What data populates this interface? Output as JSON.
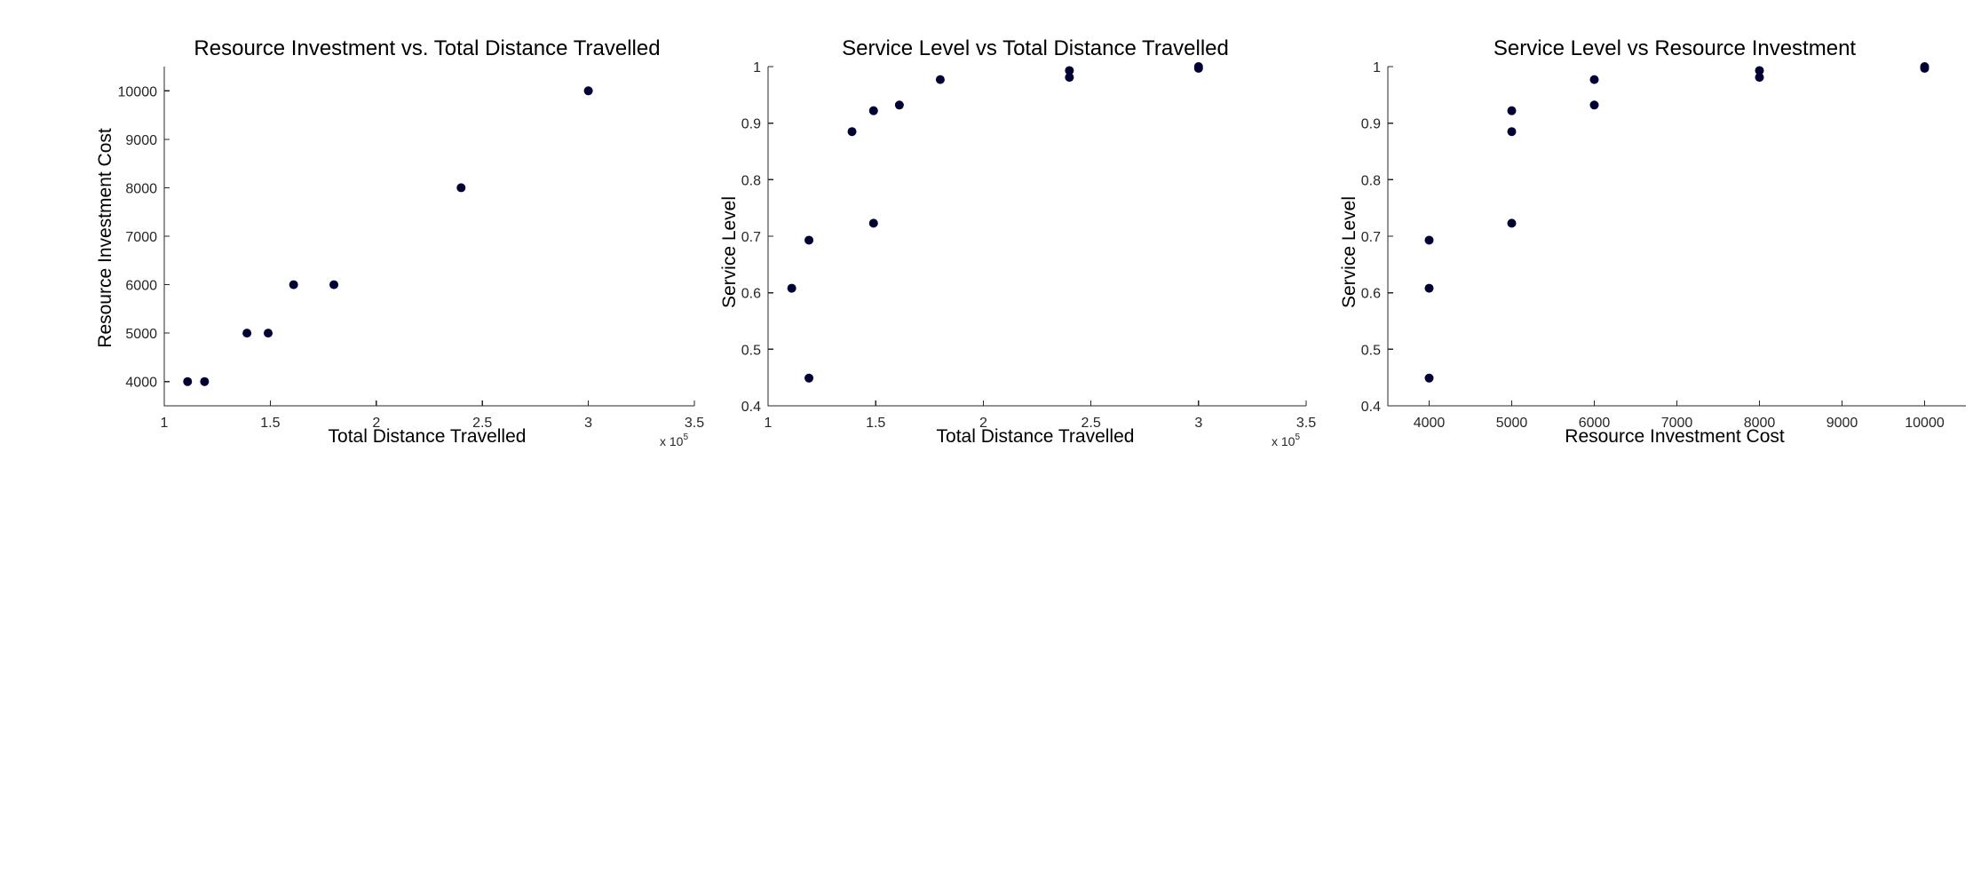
{
  "marker_color": "#000033",
  "chart_data": [
    {
      "type": "scatter",
      "title": "Resource Investment vs. Total Distance Travelled",
      "xlabel": "Total Distance Travelled",
      "ylabel": "Resource Investment Cost",
      "xlim": [
        1,
        3.5
      ],
      "ylim": [
        3500,
        10500
      ],
      "xticks": [
        "1",
        "1.5",
        "2",
        "2.5",
        "3",
        "3.5"
      ],
      "yticks": [
        "4000",
        "5000",
        "6000",
        "7000",
        "8000",
        "9000",
        "10000"
      ],
      "x_exponent": "x 10",
      "x_exponent_power": "5",
      "grid": false,
      "x": [
        1.11,
        1.19,
        1.39,
        1.49,
        1.61,
        1.8,
        2.4,
        3.0
      ],
      "y": [
        4000,
        4000,
        5000,
        5000,
        6000,
        6000,
        8000,
        10000
      ]
    },
    {
      "type": "scatter",
      "title": "Service Level vs Total Distance Travelled",
      "xlabel": "Total Distance Travelled",
      "ylabel": "Service Level",
      "xlim": [
        1,
        3.5
      ],
      "ylim": [
        0.4,
        1.0
      ],
      "xticks": [
        "1",
        "1.5",
        "2",
        "2.5",
        "3",
        "3.5"
      ],
      "yticks": [
        "0.4",
        "0.5",
        "0.6",
        "0.7",
        "0.8",
        "0.9",
        "1"
      ],
      "x_exponent": "x 10",
      "x_exponent_power": "5",
      "grid": false,
      "x": [
        1.11,
        1.19,
        1.19,
        1.39,
        1.49,
        1.49,
        1.61,
        1.8,
        2.4,
        2.4,
        3.0,
        3.0
      ],
      "y": [
        0.608,
        0.449,
        0.693,
        0.885,
        0.723,
        0.922,
        0.932,
        0.977,
        0.981,
        0.993,
        0.997,
        1.0
      ]
    },
    {
      "type": "scatter",
      "title": "Service Level vs Resource Investment",
      "xlabel": "Resource Investment Cost",
      "ylabel": "Service Level",
      "xlim": [
        3500,
        10500
      ],
      "ylim": [
        0.4,
        1.0
      ],
      "xticks": [
        "4000",
        "5000",
        "6000",
        "7000",
        "8000",
        "9000",
        "10000"
      ],
      "yticks": [
        "0.4",
        "0.5",
        "0.6",
        "0.7",
        "0.8",
        "0.9",
        "1"
      ],
      "grid": false,
      "x": [
        4000,
        4000,
        4000,
        5000,
        5000,
        5000,
        6000,
        6000,
        8000,
        8000,
        10000,
        10000
      ],
      "y": [
        0.449,
        0.608,
        0.693,
        0.723,
        0.885,
        0.922,
        0.932,
        0.977,
        0.981,
        0.993,
        0.997,
        1.0
      ]
    }
  ]
}
